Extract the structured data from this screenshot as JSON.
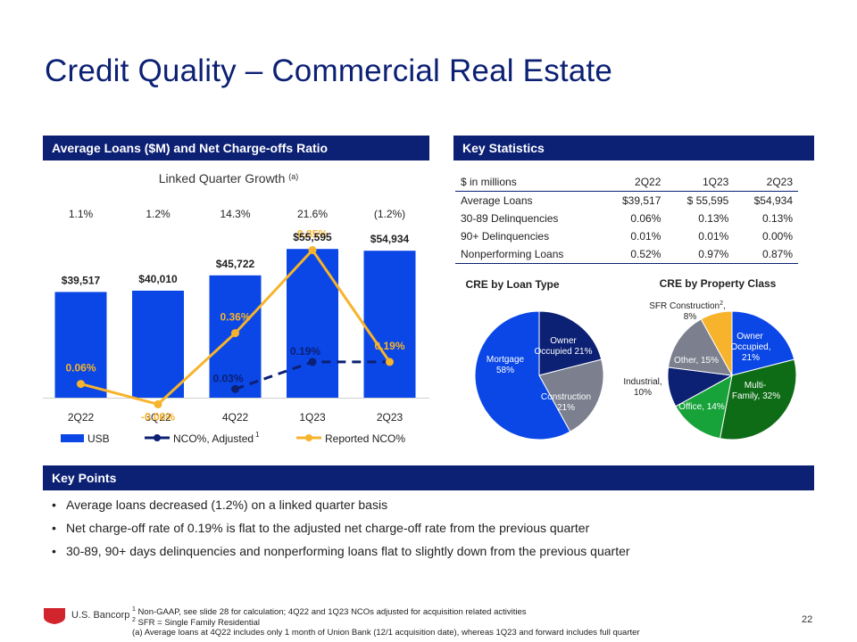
{
  "slide": {
    "title": "Credit Quality – Commercial Real Estate",
    "page_number": "22"
  },
  "left_panel": {
    "header": "Average Loans ($M) and Net Charge-offs Ratio",
    "growth_title": "Linked Quarter Growth",
    "growth_title_note": "(a)",
    "legend": {
      "usb": "USB",
      "adjusted": "NCO%, Adjusted",
      "adjusted_note": "1",
      "reported": "Reported NCO%"
    }
  },
  "chart_data": {
    "type": "bar",
    "categories": [
      "2Q22",
      "3Q22",
      "4Q22",
      "1Q23",
      "2Q23"
    ],
    "growth_labels": [
      "1.1%",
      "1.2%",
      "14.3%",
      "21.6%",
      "(1.2%)"
    ],
    "series": [
      {
        "name": "USB",
        "type": "bar",
        "values": [
          39517,
          40010,
          45722,
          55595,
          54934
        ],
        "labels": [
          "$39,517",
          "$40,010",
          "$45,722",
          "$55,595",
          "$54,934"
        ]
      },
      {
        "name": "NCO%, Adjusted",
        "type": "line",
        "style": "dashed",
        "values": [
          null,
          null,
          0.03,
          0.19,
          0.19
        ],
        "labels": [
          "",
          "",
          "0.03%",
          "0.19%",
          ""
        ]
      },
      {
        "name": "Reported NCO%",
        "type": "line",
        "values": [
          0.06,
          -0.06,
          0.36,
          0.85,
          0.19
        ],
        "labels": [
          "0.06%",
          "-0.06%",
          "0.36%",
          "0.85%",
          "0.19%"
        ]
      }
    ],
    "colors": {
      "bar": "#0a47e6",
      "adjusted": "#0c2074",
      "reported": "#f7b32b"
    }
  },
  "right_panel": {
    "header": "Key Statistics",
    "table": {
      "columns": [
        "$ in millions",
        "2Q22",
        "1Q23",
        "2Q23"
      ],
      "rows": [
        [
          "Average Loans",
          "$39,517",
          "$ 55,595",
          "$54,934"
        ],
        [
          "30-89 Delinquencies",
          "0.06%",
          "0.13%",
          "0.13%"
        ],
        [
          "90+ Delinquencies",
          "0.01%",
          "0.01%",
          "0.00%"
        ],
        [
          "Nonperforming Loans",
          "0.52%",
          "0.97%",
          "0.87%"
        ]
      ]
    },
    "pie_loan_type": {
      "title": "CRE by Loan Type",
      "slices": [
        {
          "label": "Owner Occupied",
          "pct": 21,
          "color": "#0c2074"
        },
        {
          "label": "Construction",
          "pct": 21,
          "color": "#7b7f8e"
        },
        {
          "label": "Mortgage",
          "pct": 58,
          "color": "#0a47e6"
        }
      ],
      "text": {
        "owner_1": "Owner",
        "owner_2": "Occupied 21%",
        "construction_1": "Construction",
        "construction_2": "21%",
        "mortgage_1": "Mortgage",
        "mortgage_2": "58%"
      }
    },
    "pie_property_class": {
      "title": "CRE by Property Class",
      "slices": [
        {
          "label": "Owner Occupied",
          "pct": 21,
          "color": "#0a47e6"
        },
        {
          "label": "Multi-Family",
          "pct": 32,
          "color": "#0e6b16"
        },
        {
          "label": "Office",
          "pct": 14,
          "color": "#17a33a"
        },
        {
          "label": "Industrial",
          "pct": 10,
          "color": "#0c2074"
        },
        {
          "label": "Other",
          "pct": 15,
          "color": "#7b7f8e"
        },
        {
          "label": "SFR Construction",
          "pct": 8,
          "color": "#f7b32b"
        }
      ],
      "text": {
        "sfr_1": "SFR Construction",
        "sfr_note": "2",
        "sfr_1b": ",",
        "sfr_2": "8%",
        "owner_1": "Owner",
        "owner_2": "Occupied,",
        "owner_3": "21%",
        "multi_1": "Multi-",
        "multi_2": "Family, 32%",
        "office": "Office, 14%",
        "industrial_1": "Industrial,",
        "industrial_2": "10%",
        "other": "Other, 15%"
      }
    }
  },
  "key_points": {
    "header": "Key Points",
    "bullet_char": "•",
    "items": [
      "Average loans decreased (1.2%) on a linked quarter basis",
      "Net charge-off rate of 0.19% is flat to the adjusted net charge-off rate from the previous quarter",
      "30-89, 90+ days delinquencies and nonperforming loans flat to slightly down from the previous quarter"
    ]
  },
  "footnotes": {
    "f1_mark": "1",
    "f1": " Non-GAAP, see slide 28 for calculation; 4Q22 and 1Q23 NCOs adjusted for acquisition related activities",
    "f2_mark": "2",
    "f2": " SFR = Single Family Residential",
    "fa": "(a) Average loans at 4Q22 includes only 1 month of Union Bank (12/1 acquisition date), whereas 1Q23 and forward includes full quarter"
  },
  "logo": {
    "text": "U.S. Bancorp",
    "color": "#d1242c"
  }
}
